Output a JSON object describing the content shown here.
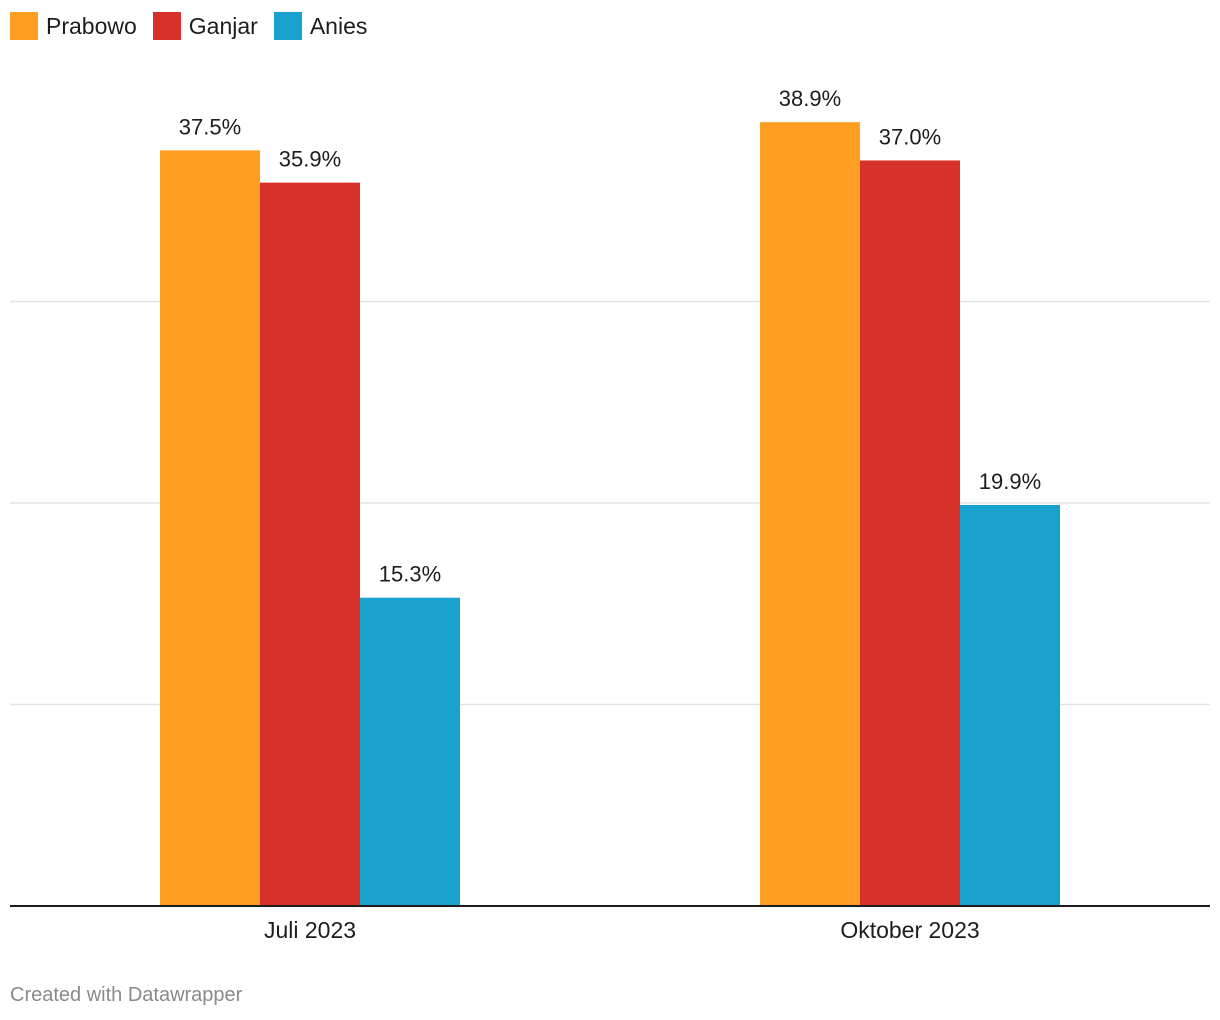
{
  "legend": {
    "items": [
      {
        "label": "Prabowo",
        "color": "#fe9f23"
      },
      {
        "label": "Ganjar",
        "color": "#d8312a"
      },
      {
        "label": "Anies",
        "color": "#19a2ce"
      }
    ]
  },
  "footer": {
    "credit": "Created with Datawrapper"
  },
  "chart_data": {
    "type": "bar",
    "categories": [
      "Juli 2023",
      "Oktober 2023"
    ],
    "series": [
      {
        "name": "Prabowo",
        "color": "#fe9f23",
        "values": [
          37.5,
          38.9
        ],
        "labels": [
          "37.5%",
          "38.9%"
        ]
      },
      {
        "name": "Ganjar",
        "color": "#d8312a",
        "values": [
          35.9,
          37.0
        ],
        "labels": [
          "35.9%",
          "37.0%"
        ]
      },
      {
        "name": "Anies",
        "color": "#19a2ce",
        "values": [
          15.3,
          19.9
        ],
        "labels": [
          "15.3%",
          "19.9%"
        ]
      }
    ],
    "ylim": [
      0,
      45
    ],
    "gridlines": [
      10,
      20,
      30
    ],
    "grid": true,
    "legend_position": "top-left",
    "y_tick_labels": false,
    "value_labels": true
  }
}
